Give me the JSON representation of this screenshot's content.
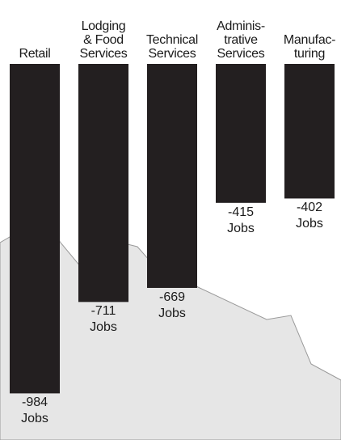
{
  "chart_data": {
    "type": "bar",
    "orientation": "vertical-down",
    "categories": [
      "Retail",
      "Lodging\n& Food\nServices",
      "Technical\nServices",
      "Adminis-\ntrative\nServices",
      "Manufac-\nturing"
    ],
    "values": [
      -984,
      -711,
      -669,
      -415,
      -402
    ],
    "value_labels": [
      "-984\nJobs",
      "-711\nJobs",
      "-669\nJobs",
      "-415\nJobs",
      "-402\nJobs"
    ],
    "title": "",
    "xlabel": "",
    "ylabel": "",
    "ylim": [
      -1000,
      0
    ],
    "grid": false,
    "legend": "none"
  },
  "colors": {
    "bar": "#231f20",
    "map_fill": "#e6e6e6",
    "map_stroke": "#9a9a9a",
    "text": "#1a1a1a"
  }
}
